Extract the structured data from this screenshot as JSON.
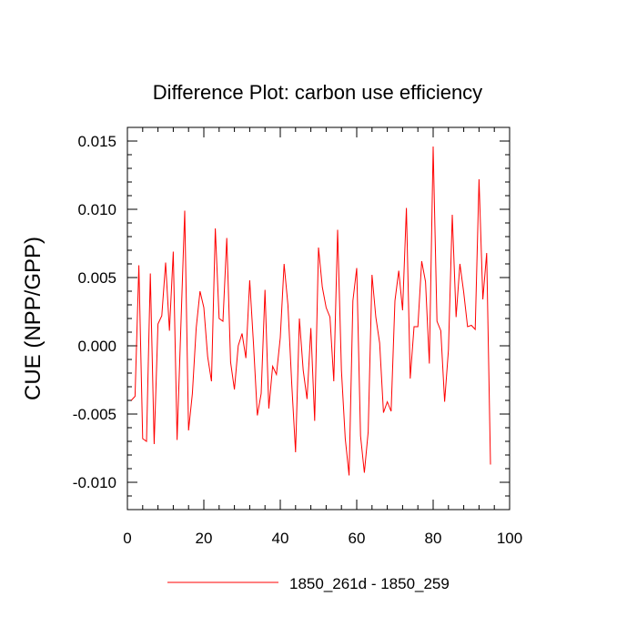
{
  "chart_data": {
    "type": "line",
    "title": "Difference Plot: carbon use efficiency",
    "xlabel": "",
    "ylabel": "CUE  (NPP/GPP)",
    "xlim": [
      0,
      100
    ],
    "ylim": [
      -0.012,
      0.016
    ],
    "x_ticks": [
      0,
      20,
      40,
      60,
      80,
      100
    ],
    "x_tick_labels": [
      "0",
      "20",
      "40",
      "60",
      "80",
      "100"
    ],
    "y_ticks": [
      -0.01,
      -0.005,
      0.0,
      0.005,
      0.01,
      0.015
    ],
    "y_tick_labels": [
      "-0.010",
      "-0.005",
      "0.000",
      "0.005",
      "0.010",
      "0.015"
    ],
    "legend_position": "bottom-center",
    "series": [
      {
        "name": "1850_261d - 1850_259",
        "color": "#ff0000",
        "x": [
          1,
          2,
          3,
          4,
          5,
          6,
          7,
          8,
          9,
          10,
          11,
          12,
          13,
          14,
          15,
          16,
          17,
          18,
          19,
          20,
          21,
          22,
          23,
          24,
          25,
          26,
          27,
          28,
          29,
          30,
          31,
          32,
          33,
          34,
          35,
          36,
          37,
          38,
          39,
          40,
          41,
          42,
          43,
          44,
          45,
          46,
          47,
          48,
          49,
          50,
          51,
          52,
          53,
          54,
          55,
          56,
          57,
          58,
          59,
          60,
          61,
          62,
          63,
          64,
          65,
          66,
          67,
          68,
          69,
          70,
          71,
          72,
          73,
          74,
          75,
          76,
          77,
          78,
          79,
          80,
          81,
          82,
          83,
          84,
          85,
          86,
          87,
          88,
          89,
          90,
          91,
          92,
          93,
          94,
          95
        ],
        "values": [
          -0.004,
          -0.0037,
          0.0059,
          -0.0068,
          -0.007,
          0.0053,
          -0.0072,
          0.0016,
          0.0022,
          0.0061,
          0.0011,
          0.0069,
          -0.0069,
          0.0015,
          0.0099,
          -0.0062,
          -0.0035,
          0.0013,
          0.004,
          0.0028,
          -0.0008,
          -0.0026,
          0.0086,
          0.002,
          0.0018,
          0.0079,
          -0.0012,
          -0.0032,
          0.0,
          0.0009,
          -0.0009,
          0.0048,
          0.0001,
          -0.0051,
          -0.0035,
          0.0041,
          -0.0046,
          -0.0015,
          -0.0021,
          0.0006,
          0.006,
          0.003,
          -0.0028,
          -0.0078,
          0.002,
          -0.0018,
          -0.0039,
          0.0013,
          -0.0055,
          0.0072,
          0.0043,
          0.0028,
          0.0021,
          -0.0026,
          0.0085,
          -0.0018,
          -0.0068,
          -0.0095,
          0.0033,
          0.0057,
          -0.0066,
          -0.0093,
          -0.0063,
          0.0052,
          0.0021,
          0.0002,
          -0.0049,
          -0.0041,
          -0.0048,
          0.0033,
          0.0055,
          0.0026,
          0.0101,
          -0.0024,
          0.0014,
          0.0014,
          0.0062,
          0.0047,
          -0.0013,
          0.0146,
          0.0018,
          0.0011,
          -0.0041,
          -0.0003,
          0.0096,
          0.0021,
          0.006,
          0.0039,
          0.0014,
          0.0015,
          0.0012,
          0.0122,
          0.0034,
          0.0068,
          -0.0087
        ]
      }
    ]
  }
}
